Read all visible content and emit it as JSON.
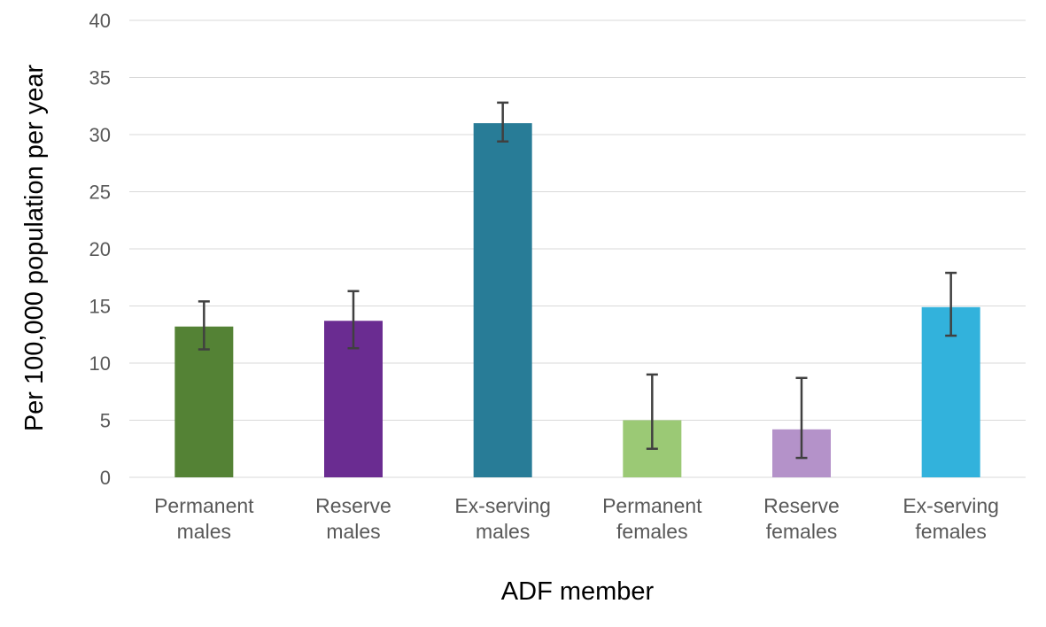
{
  "chart_data": {
    "type": "bar",
    "title": "",
    "xlabel": "ADF member",
    "ylabel": "Per 100,000 population per year",
    "ylim": [
      0,
      40
    ],
    "yticks": [
      0,
      5,
      10,
      15,
      20,
      25,
      30,
      35,
      40
    ],
    "grid": true,
    "legend": "none",
    "categories": [
      [
        "Permanent",
        "males"
      ],
      [
        "Reserve",
        "males"
      ],
      [
        "Ex-serving",
        "males"
      ],
      [
        "Permanent",
        "females"
      ],
      [
        "Reserve",
        "females"
      ],
      [
        "Ex-serving",
        "females"
      ]
    ],
    "values": [
      13.2,
      13.7,
      31.0,
      5.0,
      4.2,
      14.9
    ],
    "error_low": [
      11.2,
      11.3,
      29.4,
      2.5,
      1.7,
      12.4
    ],
    "error_high": [
      15.4,
      16.3,
      32.8,
      9.0,
      8.7,
      17.9
    ],
    "colors": [
      "#548235",
      "#6a2c91",
      "#287c97",
      "#9bc975",
      "#b492c9",
      "#32b2dc"
    ]
  }
}
